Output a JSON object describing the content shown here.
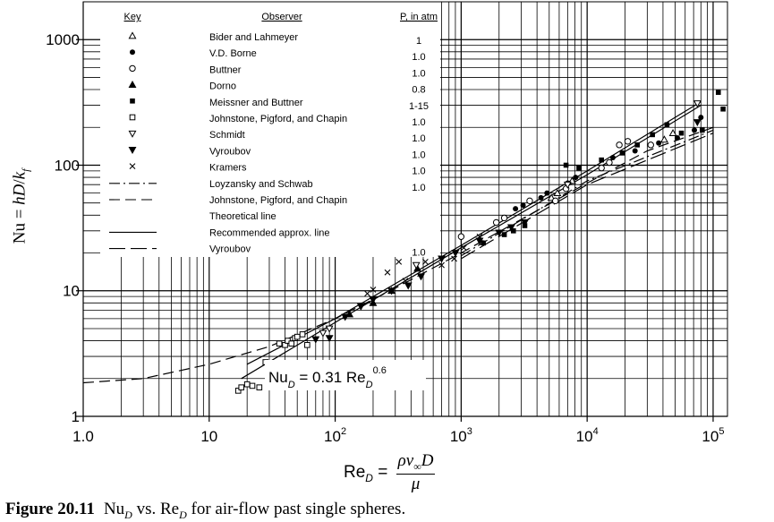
{
  "chart_data": {
    "type": "scatter",
    "xscale": "log",
    "yscale": "log",
    "xlim": [
      1,
      130000
    ],
    "ylim": [
      1,
      2000
    ],
    "grid": true,
    "x_ticks": [
      {
        "value": 1,
        "base": "1.0",
        "exp": ""
      },
      {
        "value": 10,
        "base": "10",
        "exp": ""
      },
      {
        "value": 100,
        "base": "10",
        "exp": "2"
      },
      {
        "value": 1000,
        "base": "10",
        "exp": "3"
      },
      {
        "value": 10000,
        "base": "10",
        "exp": "4"
      },
      {
        "value": 100000,
        "base": "10",
        "exp": "5"
      }
    ],
    "y_ticks": [
      {
        "value": 1,
        "label": "1"
      },
      {
        "value": 10,
        "label": "10"
      },
      {
        "value": 100,
        "label": "100"
      },
      {
        "value": 1000,
        "label": "1000"
      }
    ],
    "xlabel": "ReD = ρv∞D / μ",
    "ylabel": "Nu = hD/kf",
    "legend": {
      "headers": {
        "key": "Key",
        "observer": "Observer",
        "pressure": "P, in atm"
      },
      "entries": [
        {
          "marker": "triangle-open",
          "observer": "Bider and Lahmeyer",
          "pressure": "1"
        },
        {
          "marker": "circle-filled",
          "observer": "V.D. Borne",
          "pressure": "1.0"
        },
        {
          "marker": "circle-open",
          "observer": "Buttner",
          "pressure": "1.0"
        },
        {
          "marker": "triangle-filled",
          "observer": "Dorno",
          "pressure": "0.8"
        },
        {
          "marker": "square-filled",
          "observer": "Meissner and Buttner",
          "pressure": "1-15"
        },
        {
          "marker": "square-open",
          "observer": "Johnstone, Pigford, and Chapin",
          "pressure": "1.0"
        },
        {
          "marker": "triangle-down-open",
          "observer": "Schmidt",
          "pressure": "1.0"
        },
        {
          "marker": "triangle-down-filled",
          "observer": "Vyroubov",
          "pressure": "1.0"
        },
        {
          "marker": "cross",
          "observer": "Kramers",
          "pressure": "1.0"
        },
        {
          "marker": "line-dashdot",
          "observer": "Loyzansky and Schwab",
          "pressure": "1.0"
        },
        {
          "marker": "line-dashed",
          "observer": "Johnstone, Pigford, and Chapin",
          "pressure": ""
        },
        {
          "marker": "none",
          "observer": "Theoretical line",
          "pressure": ""
        },
        {
          "marker": "line-solid",
          "observer": "Recommended approx. line",
          "pressure": ""
        },
        {
          "marker": "line-longdash",
          "observer": "Vyroubov",
          "pressure": "1.0"
        }
      ]
    },
    "annotation": {
      "text": "NuD = 0.31 ReD0.6"
    },
    "series": [
      {
        "marker": "triangle-open",
        "points": [
          [
            5200,
            55
          ],
          [
            5800,
            60
          ],
          [
            7600,
            75
          ],
          [
            41000,
            160
          ],
          [
            48000,
            180
          ]
        ]
      },
      {
        "marker": "circle-filled",
        "points": [
          [
            2700,
            45
          ],
          [
            3100,
            48
          ],
          [
            4300,
            55
          ],
          [
            4800,
            60
          ],
          [
            7000,
            72
          ],
          [
            8100,
            80
          ],
          [
            16000,
            115
          ],
          [
            24000,
            130
          ],
          [
            37000,
            150
          ],
          [
            52000,
            165
          ],
          [
            71000,
            190
          ],
          [
            80000,
            240
          ]
        ]
      },
      {
        "marker": "circle-open",
        "points": [
          [
            1000,
            27
          ],
          [
            1900,
            35
          ],
          [
            2200,
            38
          ],
          [
            3500,
            52
          ],
          [
            5600,
            52
          ],
          [
            6800,
            65
          ],
          [
            13000,
            95
          ],
          [
            15000,
            105
          ],
          [
            18000,
            145
          ],
          [
            21000,
            155
          ],
          [
            32000,
            145
          ]
        ]
      },
      {
        "marker": "triangle-filled",
        "points": [
          [
            130,
            6.5
          ],
          [
            200,
            8
          ],
          [
            280,
            10
          ],
          [
            450,
            15
          ]
        ]
      },
      {
        "marker": "square-filled",
        "points": [
          [
            1500,
            24
          ],
          [
            2200,
            28
          ],
          [
            2600,
            30
          ],
          [
            3200,
            33
          ],
          [
            6800,
            100
          ],
          [
            8600,
            95
          ],
          [
            13000,
            110
          ],
          [
            19000,
            125
          ],
          [
            25000,
            145
          ],
          [
            33000,
            175
          ],
          [
            43000,
            210
          ],
          [
            56000,
            180
          ],
          [
            82000,
            190
          ],
          [
            110000,
            380
          ],
          [
            120000,
            280
          ]
        ]
      },
      {
        "marker": "square-open",
        "points": [
          [
            17,
            1.6
          ],
          [
            18,
            1.7
          ],
          [
            20,
            1.8
          ],
          [
            22,
            1.75
          ],
          [
            25,
            1.7
          ],
          [
            28,
            2.7
          ],
          [
            36,
            3.8
          ],
          [
            40,
            3.7
          ],
          [
            42,
            4.0
          ],
          [
            45,
            3.8
          ],
          [
            48,
            4.2
          ],
          [
            50,
            4.3
          ],
          [
            55,
            4.5
          ],
          [
            60,
            3.7
          ]
        ]
      },
      {
        "marker": "triangle-down-open",
        "points": [
          [
            80,
            4.6
          ],
          [
            90,
            5.0
          ],
          [
            440,
            16
          ],
          [
            7000,
            70
          ],
          [
            75000,
            310
          ]
        ]
      },
      {
        "marker": "triangle-down-filled",
        "points": [
          [
            70,
            4.1
          ],
          [
            90,
            4.2
          ],
          [
            120,
            6.2
          ],
          [
            160,
            7.5
          ],
          [
            200,
            8.5
          ],
          [
            280,
            10
          ],
          [
            380,
            11
          ],
          [
            480,
            13
          ],
          [
            700,
            18
          ],
          [
            900,
            20
          ],
          [
            1400,
            25
          ],
          [
            2000,
            29
          ],
          [
            2500,
            32
          ],
          [
            3200,
            35
          ],
          [
            75000,
            220
          ]
        ]
      },
      {
        "marker": "cross",
        "points": [
          [
            180,
            9.5
          ],
          [
            200,
            10.2
          ],
          [
            260,
            14
          ],
          [
            320,
            17
          ],
          [
            360,
            12
          ],
          [
            520,
            17
          ],
          [
            700,
            16
          ],
          [
            880,
            18
          ],
          [
            1050,
            22
          ],
          [
            1400,
            27
          ]
        ]
      }
    ],
    "lines": [
      {
        "style": "solid",
        "name": "Recommended approx. line",
        "points": [
          [
            20,
            2.6
          ],
          [
            100,
            6.0
          ],
          [
            1000,
            23
          ],
          [
            10000,
            90
          ],
          [
            80000,
            320
          ]
        ]
      },
      {
        "style": "solid",
        "name": "",
        "points": [
          [
            18,
            2.0
          ],
          [
            100,
            5.6
          ],
          [
            1000,
            22
          ],
          [
            10000,
            84
          ],
          [
            80000,
            300
          ]
        ]
      },
      {
        "style": "dashed",
        "name": "Johnstone, Pigford, and Chapin",
        "points": [
          [
            1,
            1.85
          ],
          [
            3,
            2.0
          ],
          [
            10,
            2.6
          ],
          [
            30,
            3.6
          ],
          [
            100,
            6.0
          ],
          [
            300,
            10.5
          ],
          [
            1000,
            20
          ],
          [
            3000,
            37
          ],
          [
            10000,
            72
          ],
          [
            30000,
            130
          ],
          [
            100000,
            200
          ]
        ]
      },
      {
        "style": "dashdot",
        "name": "Loyzansky and Schwab",
        "points": [
          [
            1000,
            19
          ],
          [
            10000,
            75
          ],
          [
            100000,
            190
          ]
        ]
      },
      {
        "style": "longdash",
        "name": "Vyroubov",
        "points": [
          [
            1000,
            18
          ],
          [
            10000,
            70
          ],
          [
            100000,
            180
          ]
        ]
      }
    ]
  },
  "caption": {
    "label": "Figure 20.11",
    "text": "NuD vs. ReD for air-flow past single spheres."
  }
}
